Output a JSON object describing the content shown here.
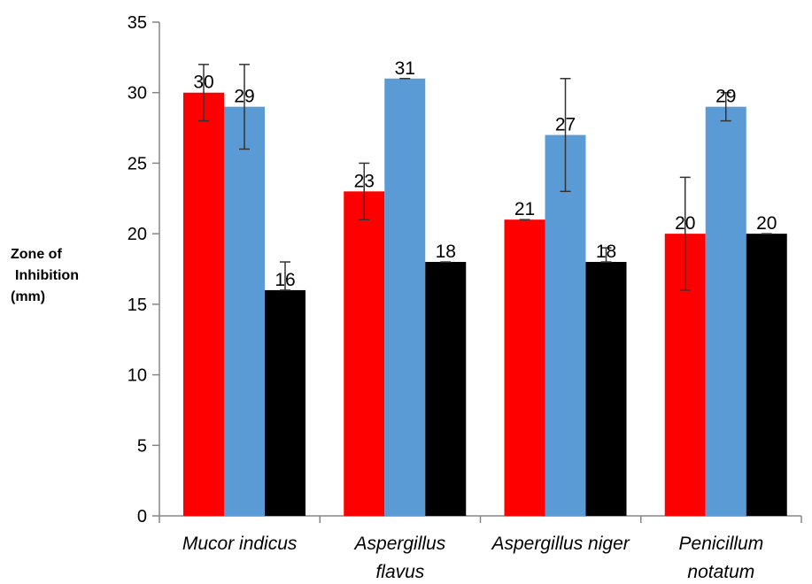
{
  "chart_data": {
    "type": "bar",
    "title": "",
    "ylabel_lines": [
      "Zone of",
      "Inhibition",
      "(mm)"
    ],
    "xlabel": "",
    "ylim": [
      0,
      35
    ],
    "yticks": [
      0,
      5,
      10,
      15,
      20,
      25,
      30,
      35
    ],
    "grid": false,
    "legend": "none",
    "categories": [
      [
        "Mucor indicus"
      ],
      [
        "Aspergillus",
        "flavus"
      ],
      [
        "Aspergillus niger"
      ],
      [
        "Penicillum",
        "notatum"
      ]
    ],
    "series": [
      {
        "color": "#ff0000",
        "values": [
          30,
          23,
          21,
          20
        ],
        "err_low": [
          28,
          21,
          21,
          16
        ],
        "err_high": [
          32,
          25,
          21,
          24
        ]
      },
      {
        "color": "#5b9bd5",
        "values": [
          29,
          31,
          27,
          29
        ],
        "err_low": [
          26,
          31,
          23,
          28
        ],
        "err_high": [
          32,
          31,
          31,
          30
        ]
      },
      {
        "color": "#000000",
        "values": [
          16,
          18,
          18,
          20
        ],
        "err_low": [
          16,
          18,
          18,
          20
        ],
        "err_high": [
          18,
          18,
          19,
          20
        ]
      }
    ]
  }
}
